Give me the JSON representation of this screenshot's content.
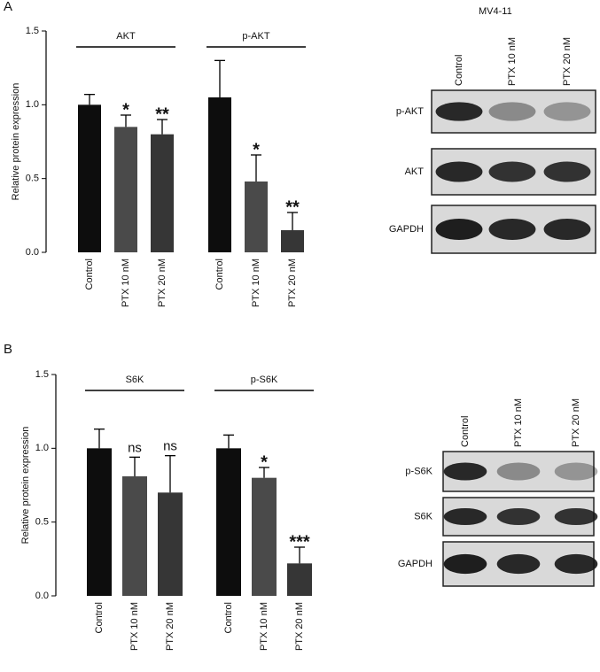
{
  "cell_line": "MV4-11",
  "chart_data": [
    {
      "type": "bar",
      "panel": "A",
      "y_label": "Relative protein expression",
      "groups": [
        "AKT",
        "p-AKT"
      ],
      "categories": [
        "Control",
        "PTX 10 nM",
        "PTX 20 nM",
        "Control",
        "PTX 10 nM",
        "PTX 20 nM"
      ],
      "values": [
        1.0,
        0.85,
        0.8,
        1.05,
        0.48,
        0.15
      ],
      "errors": [
        0.07,
        0.08,
        0.1,
        0.25,
        0.18,
        0.12
      ],
      "significance": [
        null,
        "*",
        "**",
        null,
        "*",
        "**"
      ],
      "colors": [
        "#0d0d0d",
        "#4a4a4a",
        "#363636",
        "#0d0d0d",
        "#4a4a4a",
        "#363636"
      ],
      "ylim": [
        0,
        1.5
      ],
      "yticks": [
        {
          "value": 0,
          "label": "0.0"
        },
        {
          "value": 0.5,
          "label": "0.5"
        },
        {
          "value": 1,
          "label": "1.0"
        },
        {
          "value": 1.5,
          "label": "1.5"
        }
      ]
    },
    {
      "type": "bar",
      "panel": "B",
      "y_label": "Relative protein expression",
      "groups": [
        "S6K",
        "p-S6K"
      ],
      "categories": [
        "Control",
        "PTX 10 nM",
        "PTX 20 nM",
        "Control",
        "PTX 10 nM",
        "PTX 20 nM"
      ],
      "values": [
        1.0,
        0.81,
        0.7,
        1.0,
        0.8,
        0.22
      ],
      "errors": [
        0.13,
        0.13,
        0.25,
        0.09,
        0.07,
        0.11
      ],
      "significance": [
        null,
        "ns",
        "ns",
        null,
        "*",
        "***"
      ],
      "colors": [
        "#0d0d0d",
        "#4a4a4a",
        "#363636",
        "#0d0d0d",
        "#4a4a4a",
        "#363636"
      ],
      "ylim": [
        0,
        1.5
      ],
      "yticks": [
        {
          "value": 0,
          "label": "0.0"
        },
        {
          "value": 0.5,
          "label": "0.5"
        },
        {
          "value": 1,
          "label": "1.0"
        },
        {
          "value": 1.5,
          "label": "1.5"
        }
      ]
    }
  ],
  "blots": [
    {
      "lanes": [
        "Control",
        "PTX 10 nM",
        "PTX 20 nM"
      ],
      "rows": [
        "p-AKT",
        "AKT",
        "GAPDH"
      ]
    },
    {
      "lanes": [
        "Control",
        "PTX 10 nM",
        "PTX 20 nM"
      ],
      "rows": [
        "p-S6K",
        "S6K",
        "GAPDH"
      ]
    }
  ]
}
